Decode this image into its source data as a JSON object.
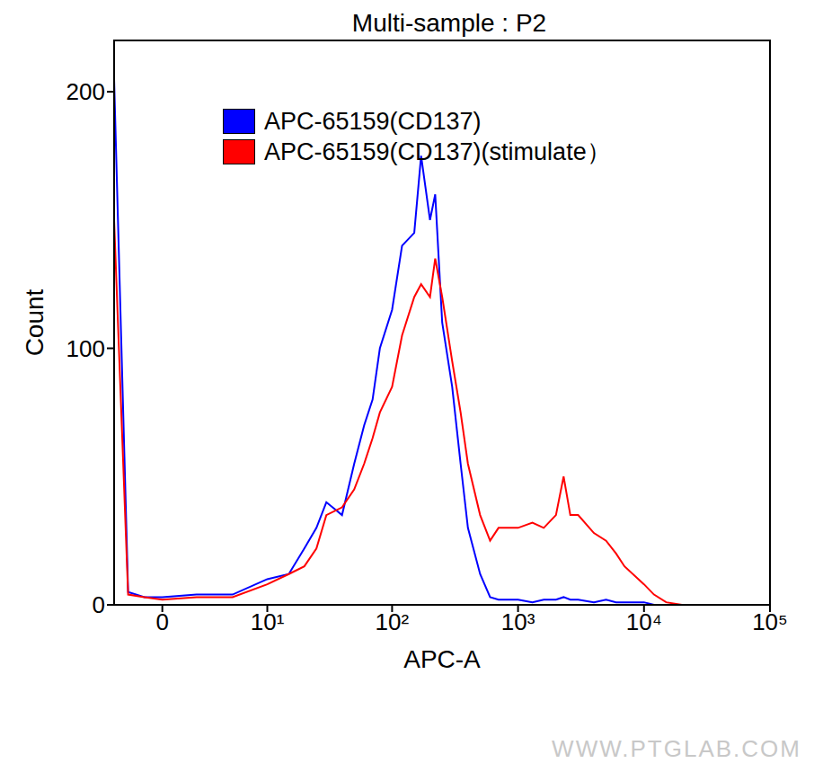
{
  "chart_data": {
    "type": "line",
    "title": "Multi-sample : P2",
    "x_label": "APC-A",
    "y_label": "Count",
    "annotations": [
      "WWW.PTGLAB.COM"
    ],
    "log": "x",
    "legend": "top-left",
    "grid": false,
    "x": [
      -3,
      -2,
      -1,
      0,
      2,
      5,
      10,
      15,
      20,
      25,
      30,
      40,
      50,
      60,
      70,
      80,
      100,
      120,
      150,
      170,
      200,
      220,
      250,
      300,
      350,
      400,
      500,
      600,
      700,
      1000,
      1300,
      1600,
      2000,
      2300,
      2600,
      3000,
      4000,
      5000,
      6000,
      7000,
      10000,
      12000,
      15000,
      20000,
      50000
    ],
    "xlim": [
      -3,
      100000
    ],
    "xticks": [
      0,
      {
        "value": 10,
        "label": "10¹"
      },
      {
        "value": 100,
        "label": "10²"
      },
      {
        "value": 1000,
        "label": "10³"
      },
      {
        "value": 10000,
        "label": "10⁴"
      },
      {
        "value": 100000,
        "label": "10⁵"
      }
    ],
    "ylim": [
      0,
      220
    ],
    "yticks": [
      0,
      100,
      200
    ],
    "series": [
      {
        "name": "APC-65159(CD137)",
        "color": "#0000ff",
        "values": [
          205,
          5,
          3,
          3,
          4,
          4,
          10,
          12,
          22,
          30,
          40,
          35,
          55,
          70,
          80,
          100,
          115,
          140,
          145,
          175,
          150,
          160,
          110,
          85,
          55,
          30,
          12,
          3,
          2,
          2,
          1,
          2,
          2,
          3,
          2,
          2,
          1,
          2,
          1,
          1,
          1,
          0,
          0,
          0,
          0
        ]
      },
      {
        "name": "APC-65159(CD137)(stimulate）",
        "color": "#ff0000",
        "values": [
          150,
          4,
          3,
          2,
          3,
          3,
          8,
          12,
          15,
          22,
          35,
          38,
          45,
          55,
          65,
          75,
          85,
          105,
          120,
          125,
          120,
          135,
          120,
          95,
          75,
          55,
          35,
          25,
          30,
          30,
          32,
          30,
          35,
          50,
          35,
          35,
          28,
          25,
          20,
          15,
          8,
          4,
          1,
          0,
          0
        ]
      }
    ]
  }
}
